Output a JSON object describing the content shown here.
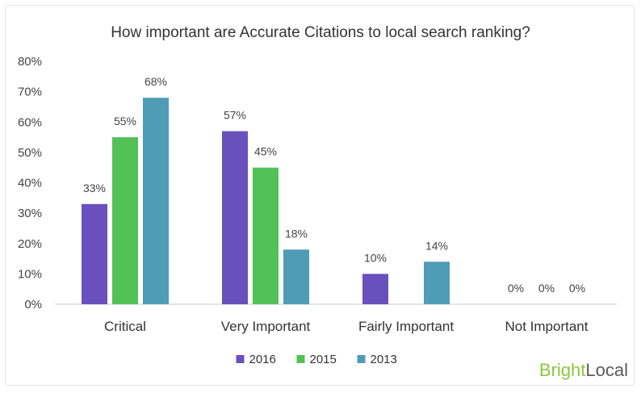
{
  "chart_data": {
    "type": "bar",
    "title": "How important are Accurate Citations to local search ranking?",
    "categories": [
      "Critical",
      "Very Important",
      "Fairly Important",
      "Not Important"
    ],
    "series": [
      {
        "name": "2016",
        "color": "#6a50bc",
        "values": [
          33,
          57,
          10,
          0
        ]
      },
      {
        "name": "2015",
        "color": "#52c157",
        "values": [
          55,
          45,
          null,
          0
        ]
      },
      {
        "name": "2013",
        "color": "#4e9cb6",
        "values": [
          68,
          18,
          14,
          0
        ]
      }
    ],
    "data_labels": [
      [
        "33%",
        "57%",
        "10%",
        "0%"
      ],
      [
        "55%",
        "45%",
        "",
        "0%"
      ],
      [
        "68%",
        "18%",
        "14%",
        "0%"
      ]
    ],
    "y_ticks": [
      "0%",
      "10%",
      "20%",
      "30%",
      "40%",
      "50%",
      "60%",
      "70%",
      "80%"
    ],
    "ylim": [
      0,
      80
    ],
    "grid": false,
    "legend_position": "bottom"
  },
  "brand": {
    "part1": "Bright",
    "part2": "Local",
    "color1": "#8cc63f",
    "color2": "#5a5a5a"
  }
}
